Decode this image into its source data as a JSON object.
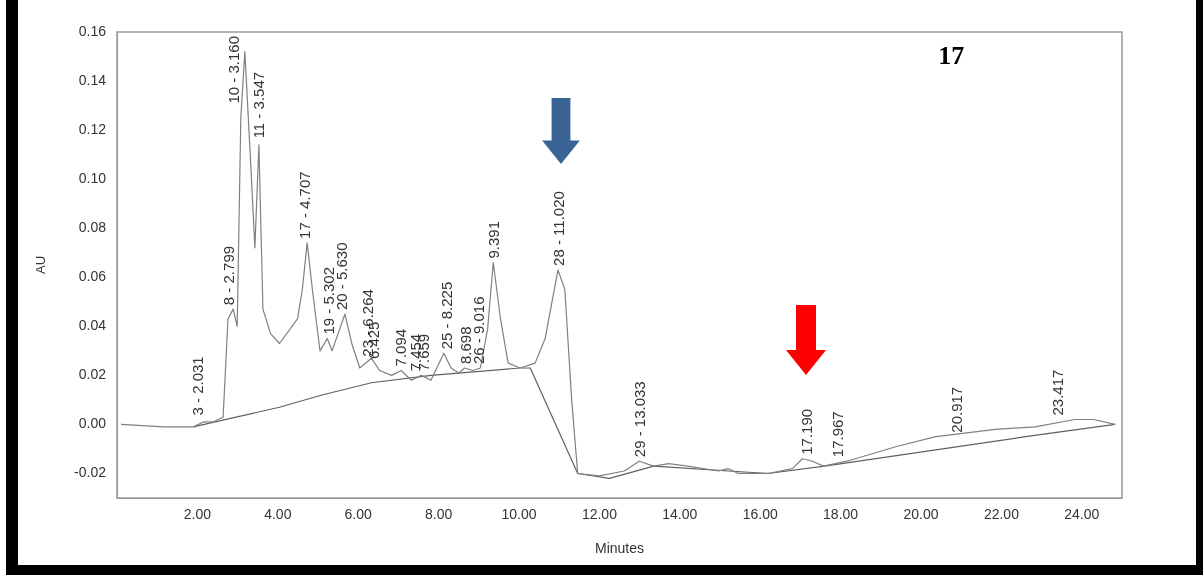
{
  "chart_data": {
    "type": "line",
    "xlabel": "Minutes",
    "ylabel": "AU",
    "xlim": [
      0,
      25
    ],
    "ylim": [
      -0.03,
      0.16
    ],
    "xticks": [
      {
        "value": 2,
        "label": "2.00"
      },
      {
        "value": 4,
        "label": "4.00"
      },
      {
        "value": 6,
        "label": "6.00"
      },
      {
        "value": 8,
        "label": "8.00"
      },
      {
        "value": 10,
        "label": "10.00"
      },
      {
        "value": 12,
        "label": "12.00"
      },
      {
        "value": 14,
        "label": "14.00"
      },
      {
        "value": 16,
        "label": "16.00"
      },
      {
        "value": 18,
        "label": "18.00"
      },
      {
        "value": 20,
        "label": "20.00"
      },
      {
        "value": 22,
        "label": "22.00"
      },
      {
        "value": 24,
        "label": "24.00"
      }
    ],
    "yticks": [
      {
        "value": -0.02,
        "label": "-0.02"
      },
      {
        "value": 0,
        "label": "0.00"
      },
      {
        "value": 0.02,
        "label": "0.02"
      },
      {
        "value": 0.04,
        "label": "0.04"
      },
      {
        "value": 0.06,
        "label": "0.06"
      },
      {
        "value": 0.08,
        "label": "0.08"
      },
      {
        "value": 0.1,
        "label": "0.10"
      },
      {
        "value": 0.12,
        "label": "0.12"
      },
      {
        "value": 0.14,
        "label": "0.14"
      },
      {
        "value": 0.16,
        "label": "0.16"
      }
    ],
    "marker": "none",
    "line_style": "solid",
    "series": [
      {
        "color": "#808080",
        "x": [
          0.1,
          1.16,
          1.9,
          2.15,
          2.39,
          2.64,
          2.76,
          2.89,
          2.99,
          3.08,
          3.18,
          3.33,
          3.43,
          3.53,
          3.63,
          3.82,
          4.04,
          4.49,
          4.61,
          4.73,
          4.86,
          5.05,
          5.23,
          5.35,
          5.67,
          5.84,
          6.04,
          6.33,
          6.53,
          6.83,
          7.07,
          7.32,
          7.57,
          7.81,
          8.13,
          8.31,
          8.5,
          8.65,
          8.85,
          9.04,
          9.22,
          9.36,
          9.54,
          9.73,
          10.03,
          10.4,
          10.65,
          10.97,
          11.14,
          11.31,
          11.46,
          12.0,
          12.62,
          12.99,
          13.35,
          13.72,
          14.2,
          14.96,
          15.2,
          15.45,
          16.19,
          16.8,
          17.05,
          17.3,
          17.57,
          18.16,
          19.39,
          20.37,
          21.85,
          22.84,
          23.82,
          24.3,
          24.83
        ],
        "values": [
          0,
          -0.001,
          -0.001,
          0.001,
          0.001,
          0.003,
          0.043,
          0.047,
          0.04,
          0.125,
          0.152,
          0.105,
          0.072,
          0.114,
          0.047,
          0.037,
          0.033,
          0.043,
          0.055,
          0.074,
          0.055,
          0.03,
          0.035,
          0.03,
          0.045,
          0.033,
          0.023,
          0.027,
          0.022,
          0.02,
          0.022,
          0.018,
          0.02,
          0.018,
          0.029,
          0.023,
          0.021,
          0.023,
          0.022,
          0.023,
          0.039,
          0.066,
          0.043,
          0.025,
          0.023,
          0.025,
          0.035,
          0.063,
          0.055,
          0.01,
          -0.02,
          -0.021,
          -0.019,
          -0.015,
          -0.017,
          -0.016,
          -0.017,
          -0.019,
          -0.018,
          -0.02,
          -0.02,
          -0.018,
          -0.014,
          -0.015,
          -0.017,
          -0.015,
          -0.009,
          -0.005,
          -0.002,
          -0.001,
          0.002,
          0.002,
          0
        ]
      },
      {
        "color": "#606060",
        "x": [
          1.9,
          2.96,
          4.04,
          5.1,
          6.33,
          7.81,
          10.03,
          10.28,
          11.46,
          12.25,
          13.35,
          16.19,
          17.6,
          22.6,
          24.83
        ],
        "values": [
          -0.001,
          0.003,
          0.007,
          0.012,
          0.017,
          0.02,
          0.023,
          0.023,
          -0.02,
          -0.022,
          -0.017,
          -0.02,
          -0.017,
          -0.005,
          0
        ]
      }
    ],
    "annotations": [
      "17",
      {
        "text": "3 - 2.031",
        "x": 2.031,
        "y": 0.002
      },
      {
        "text": "8 - 2.799",
        "x": 2.799,
        "y": 0.047
      },
      {
        "text": "10 - 3.160",
        "x": 3.16,
        "y": 0.152
      },
      {
        "text": "11 - 3.547",
        "x": 3.547,
        "y": 0.115
      },
      {
        "text": "17 - 4.707",
        "x": 4.707,
        "y": 0.074
      },
      {
        "text": "19 - 5.302",
        "x": 5.302,
        "y": 0.035
      },
      {
        "text": "20 - 5.630",
        "x": 5.63,
        "y": 0.045
      },
      {
        "text": "23 - 6.264",
        "x": 6.264,
        "y": 0.026
      },
      {
        "text": "6.425",
        "x": 6.425,
        "y": 0.025
      },
      {
        "text": "7.094",
        "x": 7.094,
        "y": 0.022
      },
      {
        "text": "7.454",
        "x": 7.454,
        "y": 0.02
      },
      {
        "text": "7.659",
        "x": 7.659,
        "y": 0.02
      },
      {
        "text": "25 - 8.225",
        "x": 8.225,
        "y": 0.029
      },
      {
        "text": "8.698",
        "x": 8.698,
        "y": 0.023
      },
      {
        "text": "26 - 9.016",
        "x": 9.016,
        "y": 0.023
      },
      {
        "text": "9.391",
        "x": 9.391,
        "y": 0.066
      },
      {
        "text": "28 - 11.020",
        "x": 11.02,
        "y": 0.063
      },
      {
        "text": "29 - 13.033",
        "x": 13.033,
        "y": -0.015
      },
      {
        "text": "17.190",
        "x": 17.19,
        "y": -0.014
      },
      {
        "text": "17.967",
        "x": 17.967,
        "y": -0.015
      },
      {
        "text": "20.917",
        "x": 20.917,
        "y": -0.005
      },
      {
        "text": "23.417",
        "x": 23.417,
        "y": 0.002
      }
    ]
  }
}
